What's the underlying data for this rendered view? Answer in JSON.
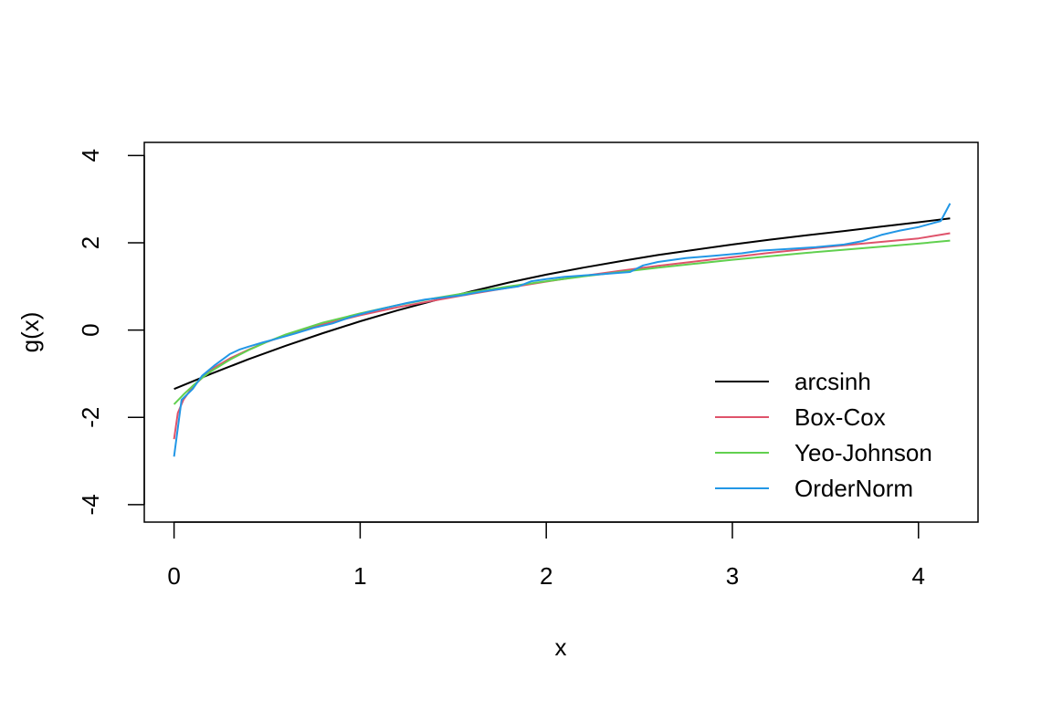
{
  "chart_data": {
    "type": "line",
    "title": "",
    "xlabel": "x",
    "ylabel": "g(x)",
    "xlim": [
      -0.16,
      4.32
    ],
    "ylim": [
      -4.4,
      4.3
    ],
    "x_ticks": [
      0,
      1,
      2,
      3,
      4
    ],
    "x_tick_labels": [
      "0",
      "1",
      "2",
      "3",
      "4"
    ],
    "y_ticks": [
      -4,
      -2,
      0,
      2,
      4
    ],
    "y_tick_labels": [
      "-4",
      "-2",
      "0",
      "2",
      "4"
    ],
    "grid": false,
    "legend_position": "bottom-right",
    "series": [
      {
        "name": "arcsinh",
        "color": "#000000",
        "x": [
          0,
          0.2,
          0.4,
          0.6,
          0.8,
          1.0,
          1.2,
          1.4,
          1.6,
          1.8,
          2.0,
          2.2,
          2.4,
          2.6,
          2.8,
          3.0,
          3.2,
          3.4,
          3.6,
          3.8,
          4.0,
          4.17
        ],
        "y": [
          -1.35,
          -1.0,
          -0.67,
          -0.36,
          -0.07,
          0.2,
          0.45,
          0.68,
          0.89,
          1.09,
          1.27,
          1.43,
          1.58,
          1.72,
          1.84,
          1.96,
          2.07,
          2.17,
          2.27,
          2.37,
          2.47,
          2.56
        ]
      },
      {
        "name": "Box-Cox",
        "color": "#DF536B",
        "x": [
          0,
          0.02,
          0.05,
          0.1,
          0.15,
          0.2,
          0.3,
          0.4,
          0.5,
          0.6,
          0.8,
          1.0,
          1.2,
          1.4,
          1.6,
          1.8,
          2.0,
          2.2,
          2.4,
          2.6,
          2.8,
          3.0,
          3.2,
          3.4,
          3.6,
          3.8,
          4.0,
          4.17
        ],
        "y": [
          -2.5,
          -1.9,
          -1.6,
          -1.3,
          -1.1,
          -0.9,
          -0.65,
          -0.45,
          -0.27,
          -0.12,
          0.13,
          0.34,
          0.52,
          0.68,
          0.83,
          0.97,
          1.11,
          1.24,
          1.36,
          1.47,
          1.57,
          1.67,
          1.77,
          1.86,
          1.94,
          2.02,
          2.1,
          2.22
        ]
      },
      {
        "name": "Yeo-Johnson",
        "color": "#61D04F",
        "x": [
          0,
          0.05,
          0.1,
          0.15,
          0.2,
          0.3,
          0.4,
          0.5,
          0.6,
          0.8,
          1.0,
          1.2,
          1.4,
          1.6,
          1.8,
          2.0,
          2.2,
          2.4,
          2.6,
          2.8,
          3.0,
          3.2,
          3.4,
          3.6,
          3.8,
          4.0,
          4.17
        ],
        "y": [
          -1.7,
          -1.48,
          -1.28,
          -1.1,
          -0.94,
          -0.68,
          -0.46,
          -0.27,
          -0.1,
          0.17,
          0.38,
          0.57,
          0.73,
          0.87,
          1.0,
          1.12,
          1.23,
          1.33,
          1.43,
          1.52,
          1.61,
          1.69,
          1.77,
          1.84,
          1.91,
          1.98,
          2.05
        ]
      },
      {
        "name": "OrderNorm",
        "color": "#2297E6",
        "x": [
          0,
          0.04,
          0.1,
          0.15,
          0.22,
          0.3,
          0.35,
          0.4,
          0.48,
          0.55,
          0.65,
          0.75,
          0.85,
          0.95,
          1.05,
          1.15,
          1.25,
          1.35,
          1.45,
          1.55,
          1.65,
          1.75,
          1.85,
          1.92,
          2.0,
          2.1,
          2.2,
          2.3,
          2.45,
          2.52,
          2.6,
          2.75,
          2.9,
          3.05,
          3.15,
          3.3,
          3.45,
          3.6,
          3.7,
          3.8,
          3.9,
          4.0,
          4.12,
          4.17
        ],
        "y": [
          -2.9,
          -1.6,
          -1.35,
          -1.05,
          -0.8,
          -0.55,
          -0.45,
          -0.38,
          -0.28,
          -0.2,
          -0.08,
          0.05,
          0.15,
          0.3,
          0.42,
          0.52,
          0.62,
          0.7,
          0.75,
          0.8,
          0.88,
          0.94,
          1.0,
          1.12,
          1.17,
          1.22,
          1.25,
          1.28,
          1.33,
          1.48,
          1.56,
          1.65,
          1.7,
          1.76,
          1.82,
          1.86,
          1.9,
          1.96,
          2.04,
          2.18,
          2.28,
          2.36,
          2.5,
          2.9
        ]
      }
    ]
  }
}
